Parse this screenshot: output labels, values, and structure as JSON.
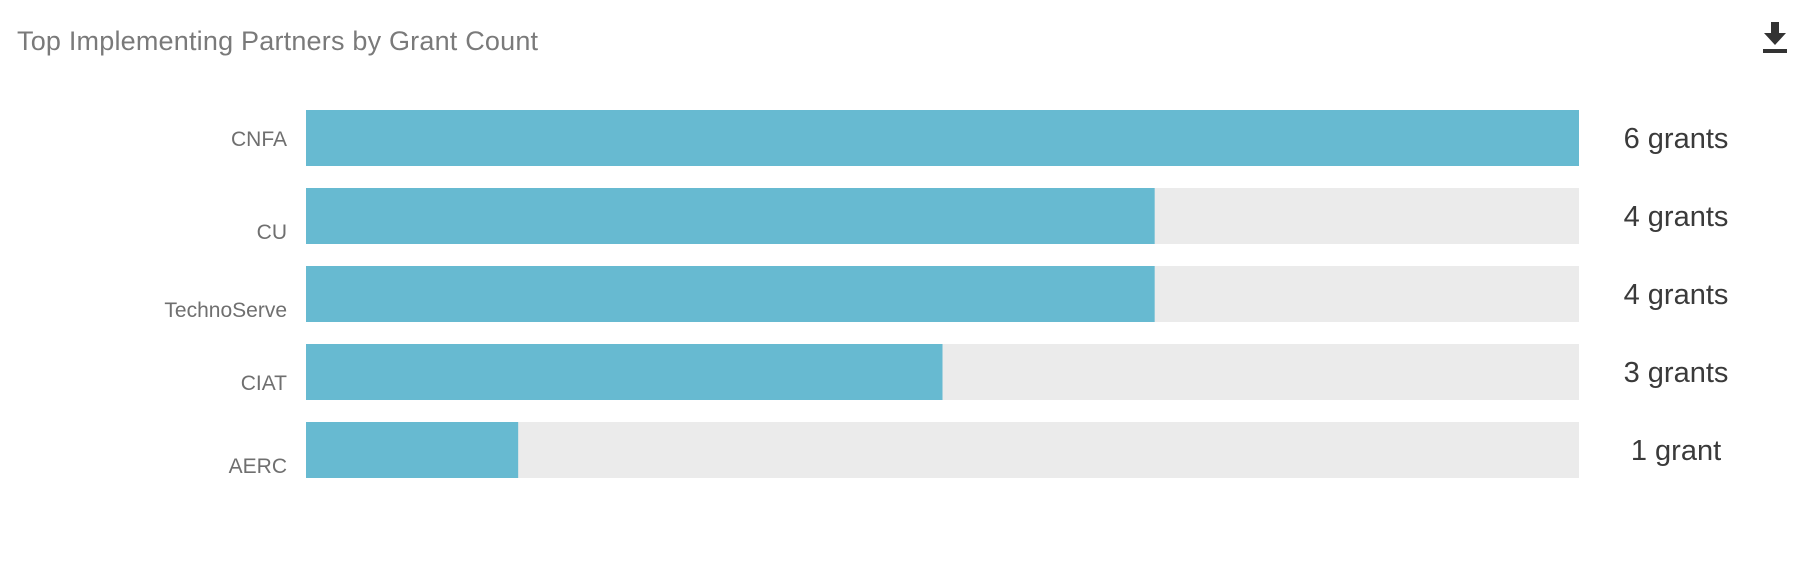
{
  "header": {
    "title": "Top Implementing Partners by Grant Count",
    "download_icon": "download-icon"
  },
  "colors": {
    "bar": "#67bad1",
    "track": "#ebebeb"
  },
  "chart_data": {
    "type": "bar",
    "orientation": "horizontal",
    "title": "Top Implementing Partners by Grant Count",
    "categories": [
      "CNFA",
      "CU",
      "TechnoServe",
      "CIAT",
      "AERC"
    ],
    "values": [
      6,
      4,
      4,
      3,
      1
    ],
    "value_labels": [
      "6 grants",
      "4 grants",
      "4 grants",
      "3 grants",
      "1 grant"
    ],
    "xlim": [
      0,
      6
    ],
    "grid": false,
    "legend": "none"
  }
}
